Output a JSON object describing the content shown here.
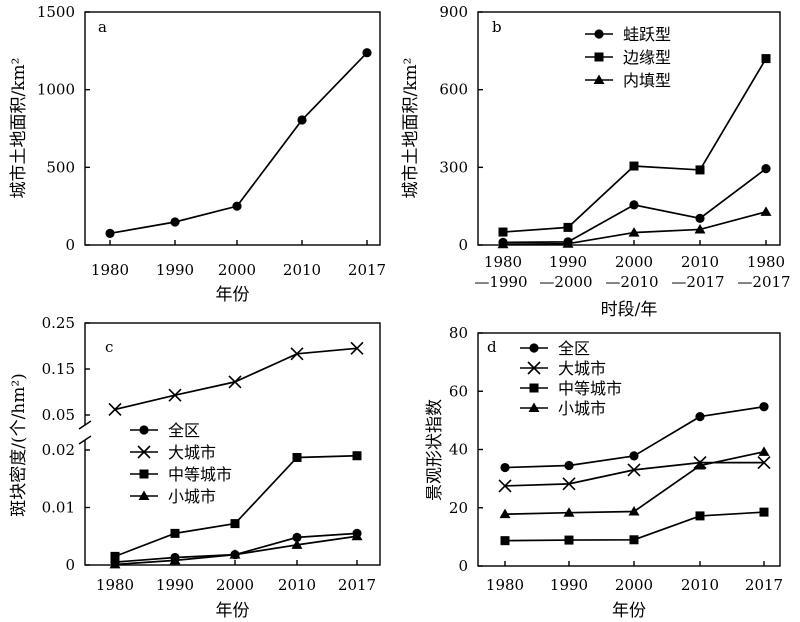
{
  "chart_data": [
    {
      "panel": "a",
      "type": "line",
      "xlabel": "年份",
      "ylabel": "城市土地面积/km²",
      "categories": [
        "1980",
        "1990",
        "2000",
        "2010",
        "2017"
      ],
      "ylim": [
        0,
        1500
      ],
      "yticks": [
        "0",
        "500",
        "1000",
        "1500"
      ],
      "legend": "none",
      "series": [
        {
          "marker": "circle",
          "values": [
            75,
            148,
            250,
            805,
            1238
          ]
        }
      ]
    },
    {
      "panel": "b",
      "type": "line",
      "xlabel": "时段/年",
      "ylabel": "城市土地面积/km²",
      "categories": [
        "1980—1990",
        "1990—2000",
        "2000—2010",
        "2010—2017",
        "1980—2017"
      ],
      "category_label_rows": [
        [
          "1980",
          "1990",
          "2000",
          "2010",
          "1980"
        ],
        [
          "—1990",
          "—2000",
          "—2010",
          "—2017",
          "—2017"
        ]
      ],
      "ylim": [
        0,
        900
      ],
      "yticks": [
        "0",
        "300",
        "600",
        "900"
      ],
      "legend": "top-right",
      "series": [
        {
          "name": "蛙跃型",
          "marker": "circle",
          "values": [
            10,
            12,
            155,
            103,
            295
          ]
        },
        {
          "name": "边缘型",
          "marker": "square",
          "values": [
            50,
            68,
            305,
            290,
            720
          ]
        },
        {
          "name": "内填型",
          "marker": "triangle",
          "values": [
            3,
            5,
            48,
            60,
            128
          ]
        }
      ]
    },
    {
      "panel": "c",
      "type": "line",
      "xlabel": "年份",
      "ylabel": "斑块密度/(个/hm²)",
      "categories": [
        "1980",
        "1990",
        "2000",
        "2010",
        "2017"
      ],
      "broken_axis": {
        "upper": [
          0.05,
          0.25
        ],
        "lower": [
          0,
          0.02
        ]
      },
      "yticks": [
        "0",
        "0.01",
        "0.02",
        "0.05",
        "0.15",
        "0.25"
      ],
      "legend": "middle-left",
      "series": [
        {
          "name": "全区",
          "marker": "circle",
          "values": [
            0.0005,
            0.0013,
            0.0018,
            0.0048,
            0.0055
          ]
        },
        {
          "name": "大城市",
          "marker": "x",
          "values": [
            0.062,
            0.093,
            0.122,
            0.183,
            0.195
          ]
        },
        {
          "name": "中等城市",
          "marker": "square",
          "values": [
            0.0015,
            0.0055,
            0.0072,
            0.0187,
            0.019
          ]
        },
        {
          "name": "小城市",
          "marker": "triangle",
          "values": [
            0.0001,
            0.0008,
            0.0018,
            0.0035,
            0.005
          ]
        }
      ]
    },
    {
      "panel": "d",
      "type": "line",
      "xlabel": "年份",
      "ylabel": "景观形状指数",
      "categories": [
        "1980",
        "1990",
        "2000",
        "2010",
        "2017"
      ],
      "ylim": [
        0,
        80
      ],
      "yticks": [
        "0",
        "20",
        "40",
        "60",
        "80"
      ],
      "legend": "top-left",
      "series": [
        {
          "name": "全区",
          "marker": "circle",
          "values": [
            33.8,
            34.5,
            37.8,
            51.3,
            54.7
          ]
        },
        {
          "name": "大城市",
          "marker": "x",
          "values": [
            27.5,
            28.2,
            33,
            35.5,
            35.5
          ]
        },
        {
          "name": "中等城市",
          "marker": "square",
          "values": [
            8.7,
            8.9,
            9,
            17.2,
            18.5
          ]
        },
        {
          "name": "小城市",
          "marker": "triangle",
          "values": [
            17.8,
            18.3,
            18.7,
            34.5,
            39.2
          ]
        }
      ]
    }
  ]
}
